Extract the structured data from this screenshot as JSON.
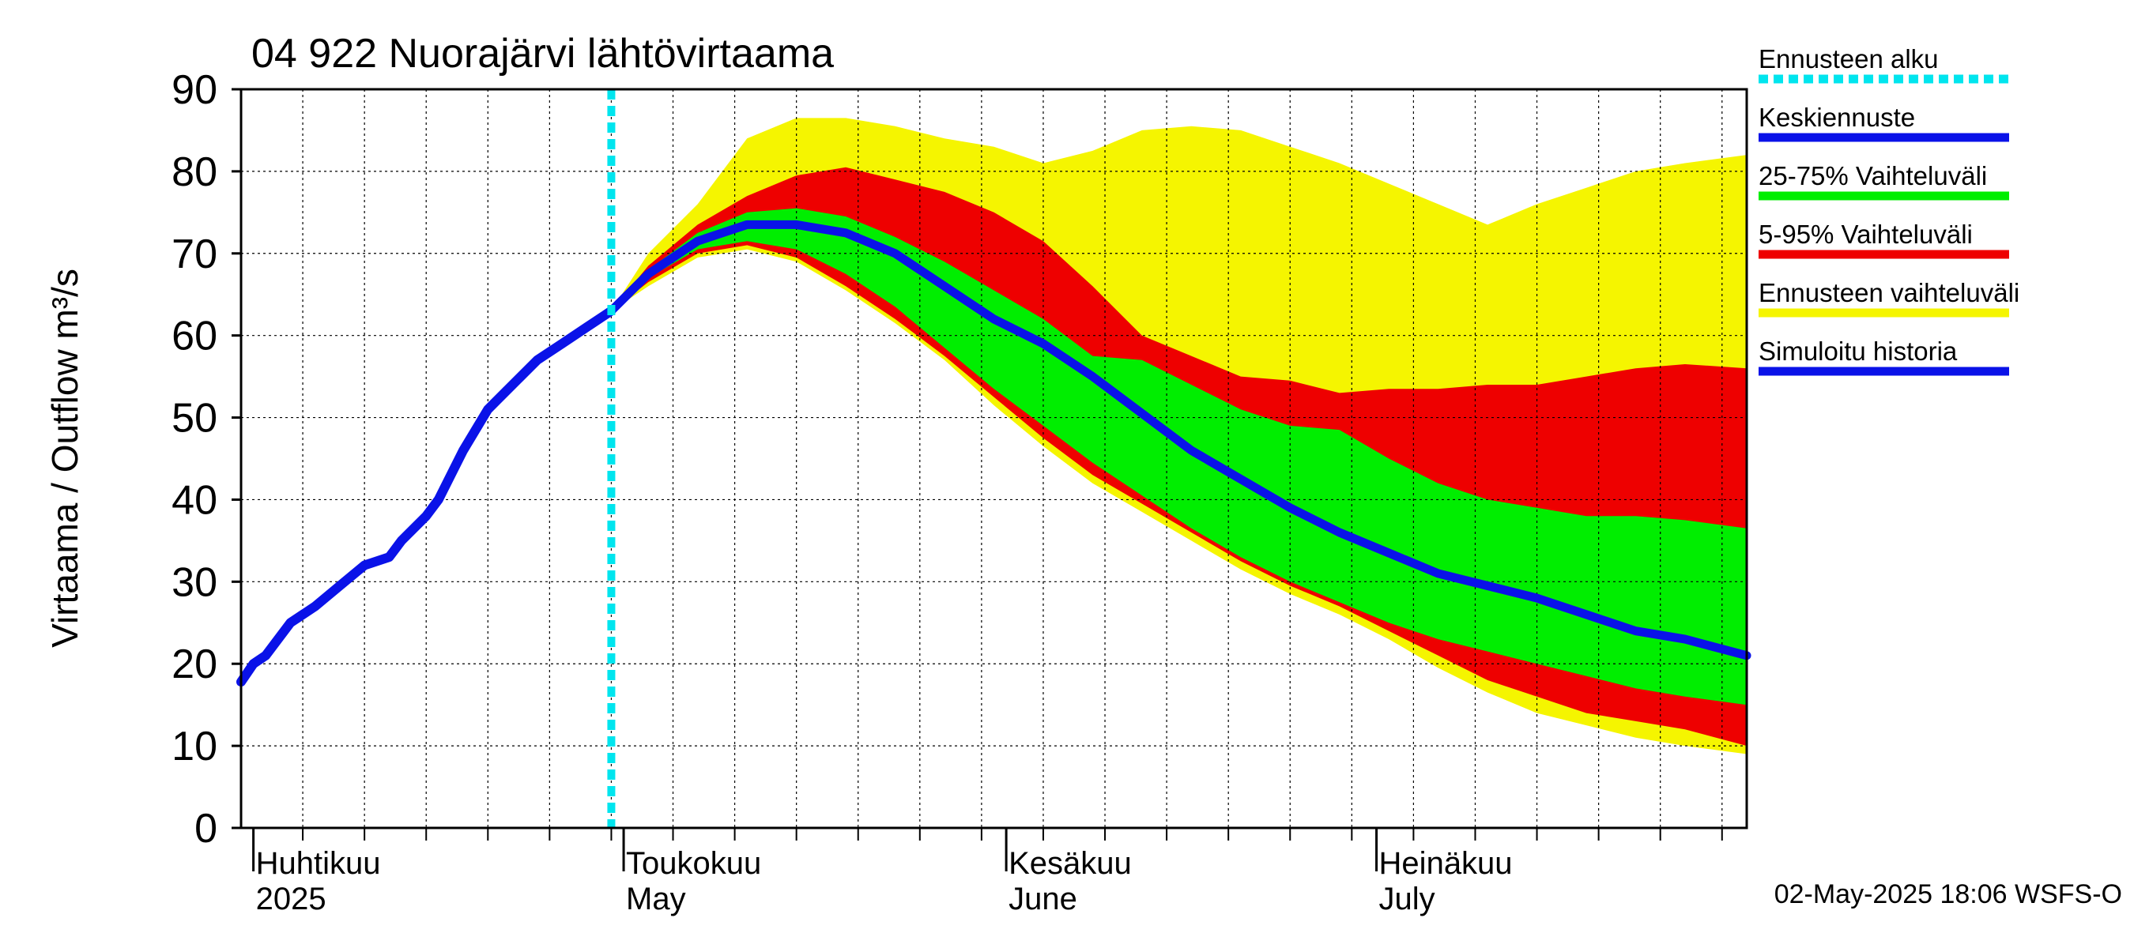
{
  "chart_data": {
    "type": "area",
    "title": "04 922 Nuorajärvi lähtövirtaama",
    "ylabel": "Virtaama / Outflow    m³/s",
    "ylim": [
      0,
      90
    ],
    "yticks": [
      0,
      10,
      20,
      30,
      40,
      50,
      60,
      70,
      80,
      90
    ],
    "xlim": [
      "2025-03-31",
      "2025-07-31"
    ],
    "month_labels": [
      {
        "fi": "Huhtikuu",
        "en": "2025",
        "date": "2025-04-01"
      },
      {
        "fi": "Toukokuu",
        "en": "May",
        "date": "2025-05-01"
      },
      {
        "fi": "Kesäkuu",
        "en": "June",
        "date": "2025-06-01"
      },
      {
        "fi": "Heinäkuu",
        "en": "July",
        "date": "2025-07-01"
      }
    ],
    "forecast_start": "2025-04-30",
    "footer": "02-May-2025 18:06 WSFS-O",
    "legend": [
      {
        "key": "forecast_start",
        "label": "Ennusteen alku",
        "color": "#00e5ee",
        "style": "dotted"
      },
      {
        "key": "median",
        "label": "Keskiennuste",
        "color": "#0a12e8",
        "style": "solid"
      },
      {
        "key": "p25_75",
        "label": "25-75% Vaihteluväli",
        "color": "#00ee00",
        "style": "solid"
      },
      {
        "key": "p5_95",
        "label": "5-95% Vaihteluväli",
        "color": "#ee0000",
        "style": "solid"
      },
      {
        "key": "range",
        "label": "Ennusteen vaihteluväli",
        "color": "#f5f500",
        "style": "solid"
      },
      {
        "key": "history",
        "label": "Simuloitu historia",
        "color": "#0a12e8",
        "style": "solid"
      }
    ],
    "history": {
      "x": [
        "2025-03-31",
        "2025-04-01",
        "2025-04-02",
        "2025-04-04",
        "2025-04-06",
        "2025-04-08",
        "2025-04-10",
        "2025-04-12",
        "2025-04-13",
        "2025-04-15",
        "2025-04-16",
        "2025-04-18",
        "2025-04-20",
        "2025-04-22",
        "2025-04-24",
        "2025-04-26",
        "2025-04-28",
        "2025-04-30"
      ],
      "y": [
        17.8,
        20,
        21,
        25,
        27,
        29.5,
        32,
        33,
        35,
        38,
        40,
        46,
        51,
        54,
        57,
        59,
        61,
        63
      ]
    },
    "forecast": {
      "x": [
        "2025-04-30",
        "2025-05-03",
        "2025-05-07",
        "2025-05-11",
        "2025-05-15",
        "2025-05-19",
        "2025-05-23",
        "2025-05-27",
        "2025-05-31",
        "2025-06-04",
        "2025-06-08",
        "2025-06-12",
        "2025-06-16",
        "2025-06-20",
        "2025-06-24",
        "2025-06-28",
        "2025-07-02",
        "2025-07-06",
        "2025-07-10",
        "2025-07-14",
        "2025-07-18",
        "2025-07-22",
        "2025-07-26",
        "2025-07-31"
      ],
      "median": [
        63,
        67.5,
        71.5,
        73.5,
        73.5,
        72.5,
        70,
        66,
        62,
        59,
        55,
        50.5,
        46,
        42.5,
        39,
        36,
        33.5,
        31,
        29.5,
        28,
        26,
        24,
        23,
        21
      ],
      "p25": [
        63,
        67,
        70.5,
        71.5,
        70.5,
        67.5,
        63.5,
        58.5,
        53.5,
        49,
        44.5,
        40.5,
        36.5,
        33,
        30,
        27.5,
        25,
        23,
        21.5,
        20,
        18.5,
        17,
        16,
        15
      ],
      "p75": [
        63,
        68,
        72.5,
        75,
        75.5,
        74.5,
        72,
        69,
        65.5,
        62,
        57.5,
        57,
        54,
        51,
        49,
        48.5,
        45,
        42,
        40,
        39,
        38,
        38,
        37.5,
        36.5
      ],
      "p5": [
        63,
        66.5,
        70,
        71,
        69.5,
        66,
        62,
        57.5,
        52.5,
        47.5,
        43,
        39.5,
        36,
        32.5,
        29.5,
        27,
        24,
        21,
        18,
        16,
        14,
        13,
        12,
        10
      ],
      "p95": [
        63,
        68.5,
        73.5,
        77,
        79.5,
        80.5,
        79,
        77.5,
        75,
        71.5,
        66,
        60,
        57.5,
        55,
        54.5,
        53,
        53.5,
        53.5,
        54,
        54,
        55,
        56,
        56.5,
        56
      ],
      "min": [
        63,
        66,
        69.5,
        70.5,
        69,
        65.5,
        61.5,
        57,
        51.5,
        46.5,
        42,
        38.5,
        35,
        31.5,
        28.5,
        26,
        23,
        19.5,
        16.5,
        14,
        12.5,
        11,
        10,
        9
      ],
      "max": [
        63,
        70,
        76,
        84,
        86.5,
        86.5,
        85.5,
        84,
        83,
        81,
        82.5,
        85,
        85.5,
        85,
        83,
        81,
        78.5,
        76,
        73.5,
        76,
        78,
        80,
        81,
        82
      ]
    }
  }
}
